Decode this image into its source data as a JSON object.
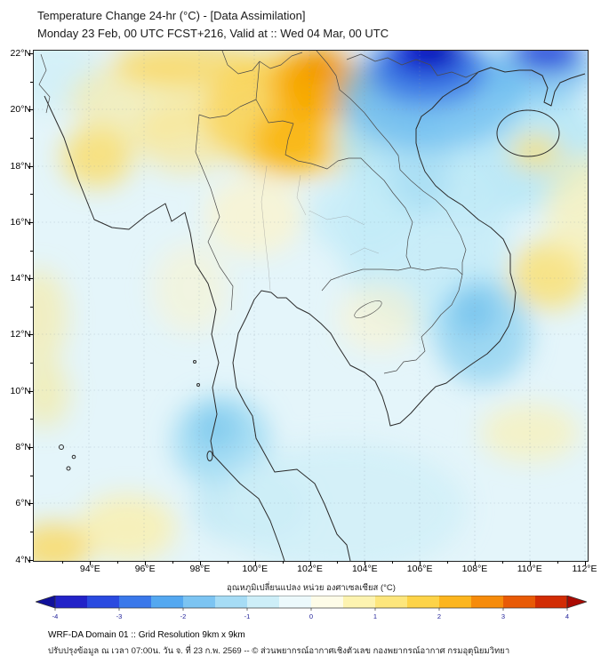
{
  "header": {
    "title": "Temperature Change 24-hr (°C) - [Data Assimilation]",
    "subtitle": "Monday 23 Feb, 00 UTC FCST+216, Valid at :: Wed 04 Mar, 00 UTC"
  },
  "map": {
    "y_tick_labels": [
      "22°N",
      "20°N",
      "18°N",
      "16°N",
      "14°N",
      "12°N",
      "10°N",
      "8°N",
      "6°N",
      "4°N"
    ],
    "x_tick_labels": [
      "94°E",
      "96°E",
      "98°E",
      "100°E",
      "102°E",
      "104°E",
      "106°E",
      "108°E",
      "110°E",
      "112°E"
    ]
  },
  "colorbar": {
    "label": "อุณหภูมิเปลี่ยนแปลง หน่วย องศาเซลเซียส (°C)",
    "min": -4,
    "max": 4,
    "tick_labels": [
      "-4",
      "-3",
      "-2",
      "-1",
      "0",
      "1",
      "2",
      "3",
      "4"
    ],
    "segment_colors": [
      "#2222c8",
      "#2a4ae0",
      "#3a78ea",
      "#54a8f0",
      "#7cc4f2",
      "#a6dcf5",
      "#cdeef8",
      "#ecf9fc",
      "#fefce8",
      "#fdf3b0",
      "#fde67c",
      "#fdd348",
      "#fcb51e",
      "#f68b0a",
      "#e85a06",
      "#d22c04"
    ],
    "left_arrow_color": "#10109a",
    "right_arrow_color": "#aa0a02"
  },
  "footer": {
    "line1": "WRF-DA Domain 01 :: Grid Resolution 9km x 9km",
    "line2": "ปรับปรุงข้อมูล ณ เวลา 07:00น. วัน จ. ที่ 23 ก.พ. 2569 -- © ส่วนพยากรณ์อากาศเชิงตัวเลข กองพยากรณ์อากาศ กรมอุตุนิยมวิทยา"
  }
}
